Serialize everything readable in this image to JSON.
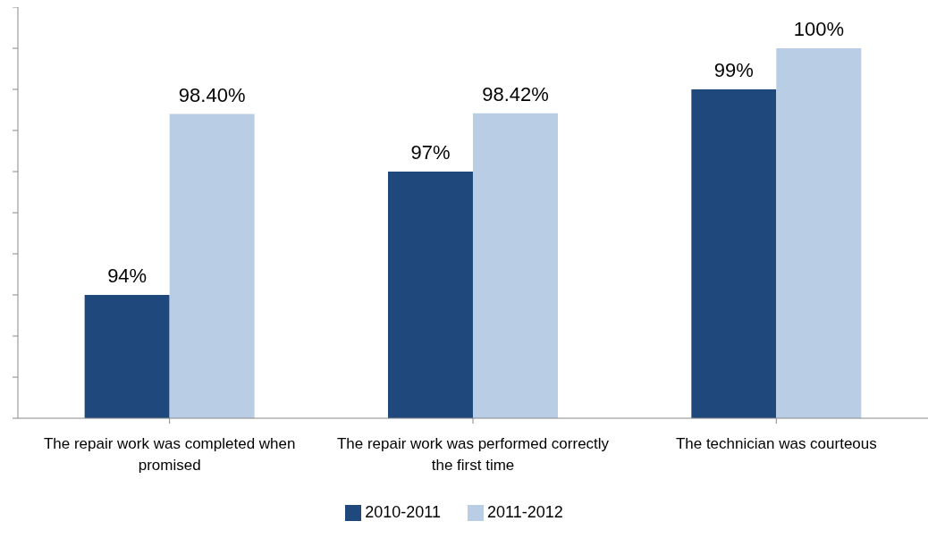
{
  "chart_data": {
    "type": "bar",
    "categories": [
      "The repair work was completed when promised",
      "The repair work was performed correctly the first time",
      "The technician was courteous"
    ],
    "series": [
      {
        "name": "2010-2011",
        "color": "#1f497d",
        "values": [
          94,
          97,
          99
        ],
        "value_labels": [
          "94%",
          "97%",
          "99%"
        ]
      },
      {
        "name": "2011-2012",
        "color": "#b9cde5",
        "values": [
          98.4,
          98.42,
          100
        ],
        "value_labels": [
          "98.40%",
          "98.42%",
          "100%"
        ]
      }
    ],
    "ylim": [
      91,
      101
    ],
    "yticks": [
      {
        "value": 91,
        "label": null
      },
      {
        "value": 92,
        "label": null
      },
      {
        "value": 93,
        "label": null
      },
      {
        "value": 94,
        "label": null
      },
      {
        "value": 95,
        "label": null
      },
      {
        "value": 96,
        "label": null
      },
      {
        "value": 97,
        "label": null
      },
      {
        "value": 98,
        "label": null
      },
      {
        "value": 99,
        "label": null
      },
      {
        "value": 100,
        "label": null
      },
      {
        "value": 101,
        "label": null
      }
    ],
    "tick_labels": "x",
    "grid": false,
    "legend": "bottom"
  }
}
